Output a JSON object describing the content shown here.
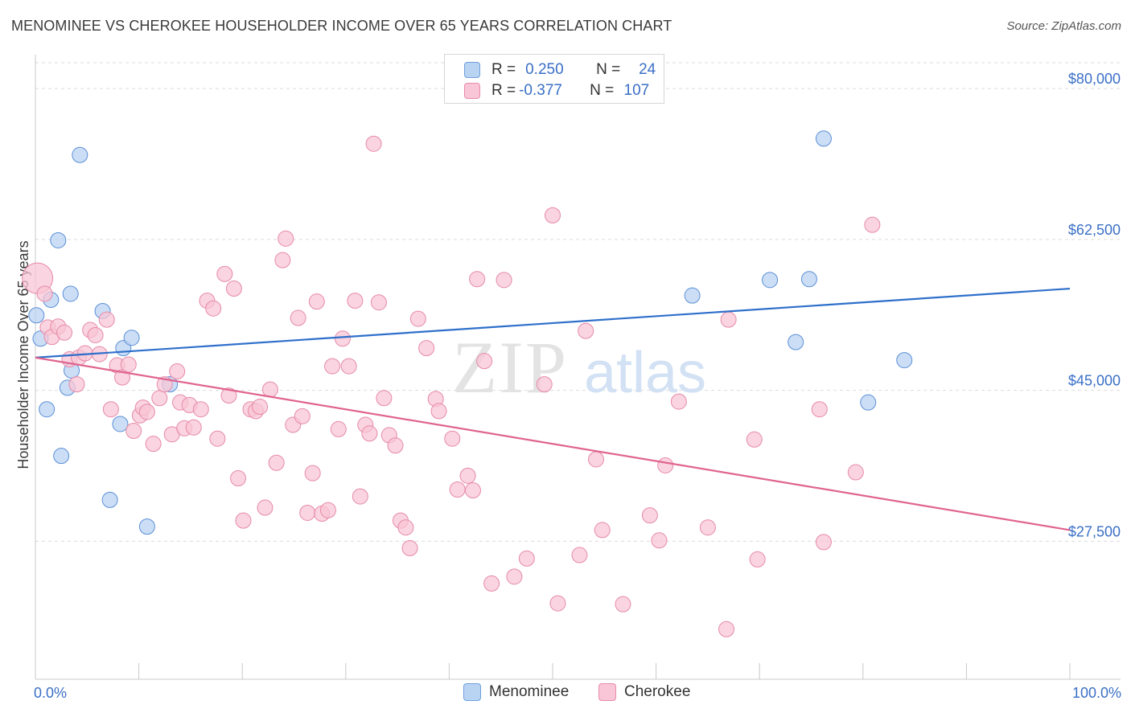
{
  "header": {
    "title": "MENOMINEE VS CHEROKEE HOUSEHOLDER INCOME OVER 65 YEARS CORRELATION CHART",
    "source": "Source: ZipAtlas.com"
  },
  "legend_box": {
    "rows": [
      {
        "r_label": "R =",
        "r_value": "0.250",
        "n_label": "N =",
        "n_value": "24",
        "color": "#a9c8f0"
      },
      {
        "r_label": "R =",
        "r_value": "-0.377",
        "n_label": "N =",
        "n_value": "107",
        "color": "#f6b9cd"
      }
    ]
  },
  "watermark": {
    "part1": "ZIP",
    "part2": "atlas"
  },
  "chart_data": {
    "type": "scatter",
    "title": "MENOMINEE VS CHEROKEE HOUSEHOLDER INCOME OVER 65 YEARS CORRELATION CHART",
    "xlabel": "",
    "ylabel": "Householder Income Over 65 years",
    "xlim": [
      0,
      100
    ],
    "ylim": [
      11500,
      83000
    ],
    "x_tick_labels": [
      "0.0%",
      "100.0%"
    ],
    "y_ticks": [
      {
        "value": 80000,
        "label": "$80,000"
      },
      {
        "value": 62500,
        "label": "$62,500"
      },
      {
        "value": 45000,
        "label": "$45,000"
      },
      {
        "value": 27500,
        "label": "$27,500"
      }
    ],
    "grid": true,
    "legend_position": "bottom",
    "series": [
      {
        "name": "Menominee",
        "color": "#5b8fd6",
        "fill": "#b9d3f3",
        "trend": {
          "x": [
            0,
            100
          ],
          "y": [
            48800,
            56800
          ],
          "color": "#2e6fcb"
        },
        "points": [
          [
            0.1,
            53700
          ],
          [
            0.5,
            51000
          ],
          [
            1.1,
            42800
          ],
          [
            1.5,
            55500
          ],
          [
            2.2,
            62400
          ],
          [
            2.5,
            37400
          ],
          [
            3.1,
            45300
          ],
          [
            3.4,
            56200
          ],
          [
            3.5,
            47300
          ],
          [
            4.3,
            72300
          ],
          [
            6.5,
            54200
          ],
          [
            7.2,
            32300
          ],
          [
            8.2,
            41100
          ],
          [
            8.5,
            49900
          ],
          [
            9.3,
            51100
          ],
          [
            10.8,
            29200
          ],
          [
            13.0,
            45700
          ],
          [
            63.5,
            56000
          ],
          [
            71.0,
            57800
          ],
          [
            73.5,
            50600
          ],
          [
            74.8,
            57900
          ],
          [
            76.2,
            74200
          ],
          [
            80.5,
            43600
          ],
          [
            84.0,
            48500
          ]
        ]
      },
      {
        "name": "Cherokee",
        "color": "#e68aa8",
        "fill": "#f8c6d6",
        "trend": {
          "x": [
            0,
            100
          ],
          "y": [
            48800,
            28800
          ],
          "color": "#e0648f"
        },
        "points": [
          [
            0.2,
            58000
          ],
          [
            0.9,
            56200
          ],
          [
            1.2,
            52300
          ],
          [
            1.6,
            51200
          ],
          [
            2.2,
            52400
          ],
          [
            2.8,
            51700
          ],
          [
            3.3,
            48600
          ],
          [
            4.0,
            45700
          ],
          [
            4.2,
            48800
          ],
          [
            4.8,
            49300
          ],
          [
            5.3,
            52000
          ],
          [
            5.8,
            51400
          ],
          [
            6.2,
            49200
          ],
          [
            6.9,
            53200
          ],
          [
            7.3,
            42800
          ],
          [
            7.9,
            47900
          ],
          [
            8.4,
            46500
          ],
          [
            9.0,
            48000
          ],
          [
            9.5,
            40300
          ],
          [
            10.1,
            42100
          ],
          [
            10.4,
            43000
          ],
          [
            10.8,
            42500
          ],
          [
            11.4,
            38800
          ],
          [
            12.0,
            44100
          ],
          [
            12.5,
            45700
          ],
          [
            13.2,
            39900
          ],
          [
            13.7,
            47200
          ],
          [
            14.0,
            43600
          ],
          [
            14.4,
            40600
          ],
          [
            14.9,
            43300
          ],
          [
            15.3,
            40700
          ],
          [
            16.0,
            42800
          ],
          [
            16.6,
            55400
          ],
          [
            17.2,
            54500
          ],
          [
            17.6,
            39400
          ],
          [
            18.3,
            58500
          ],
          [
            18.7,
            44400
          ],
          [
            19.2,
            56800
          ],
          [
            19.6,
            34800
          ],
          [
            20.1,
            29900
          ],
          [
            20.8,
            42800
          ],
          [
            21.3,
            42600
          ],
          [
            21.7,
            43100
          ],
          [
            22.2,
            31400
          ],
          [
            22.7,
            45100
          ],
          [
            23.3,
            36600
          ],
          [
            23.9,
            60100
          ],
          [
            24.2,
            62600
          ],
          [
            24.9,
            41000
          ],
          [
            25.4,
            53400
          ],
          [
            25.8,
            42000
          ],
          [
            26.3,
            30800
          ],
          [
            26.8,
            35400
          ],
          [
            27.2,
            55300
          ],
          [
            27.7,
            30700
          ],
          [
            28.3,
            31100
          ],
          [
            28.7,
            47800
          ],
          [
            29.3,
            40500
          ],
          [
            29.7,
            51000
          ],
          [
            30.3,
            47800
          ],
          [
            30.9,
            55400
          ],
          [
            31.4,
            32700
          ],
          [
            31.9,
            41000
          ],
          [
            32.3,
            40000
          ],
          [
            32.7,
            73600
          ],
          [
            33.2,
            55200
          ],
          [
            33.7,
            44100
          ],
          [
            34.2,
            39800
          ],
          [
            34.8,
            38600
          ],
          [
            35.3,
            29900
          ],
          [
            35.8,
            29100
          ],
          [
            36.2,
            26700
          ],
          [
            37.0,
            53300
          ],
          [
            37.8,
            49900
          ],
          [
            38.7,
            44000
          ],
          [
            39.0,
            42600
          ],
          [
            40.3,
            39400
          ],
          [
            40.8,
            33500
          ],
          [
            41.8,
            35100
          ],
          [
            42.3,
            33400
          ],
          [
            42.7,
            57900
          ],
          [
            43.4,
            48400
          ],
          [
            44.1,
            22600
          ],
          [
            45.3,
            57800
          ],
          [
            46.3,
            23400
          ],
          [
            47.5,
            25500
          ],
          [
            49.2,
            45700
          ],
          [
            50.0,
            65300
          ],
          [
            50.5,
            20300
          ],
          [
            52.6,
            25900
          ],
          [
            53.2,
            51900
          ],
          [
            54.2,
            37000
          ],
          [
            54.8,
            28800
          ],
          [
            56.8,
            20200
          ],
          [
            59.4,
            30500
          ],
          [
            60.3,
            27600
          ],
          [
            60.9,
            36300
          ],
          [
            62.2,
            43700
          ],
          [
            65.0,
            29100
          ],
          [
            66.8,
            17300
          ],
          [
            67.0,
            53200
          ],
          [
            69.5,
            39300
          ],
          [
            69.8,
            25400
          ],
          [
            75.8,
            42800
          ],
          [
            76.2,
            27400
          ],
          [
            79.3,
            35500
          ],
          [
            80.9,
            64200
          ]
        ]
      }
    ]
  }
}
